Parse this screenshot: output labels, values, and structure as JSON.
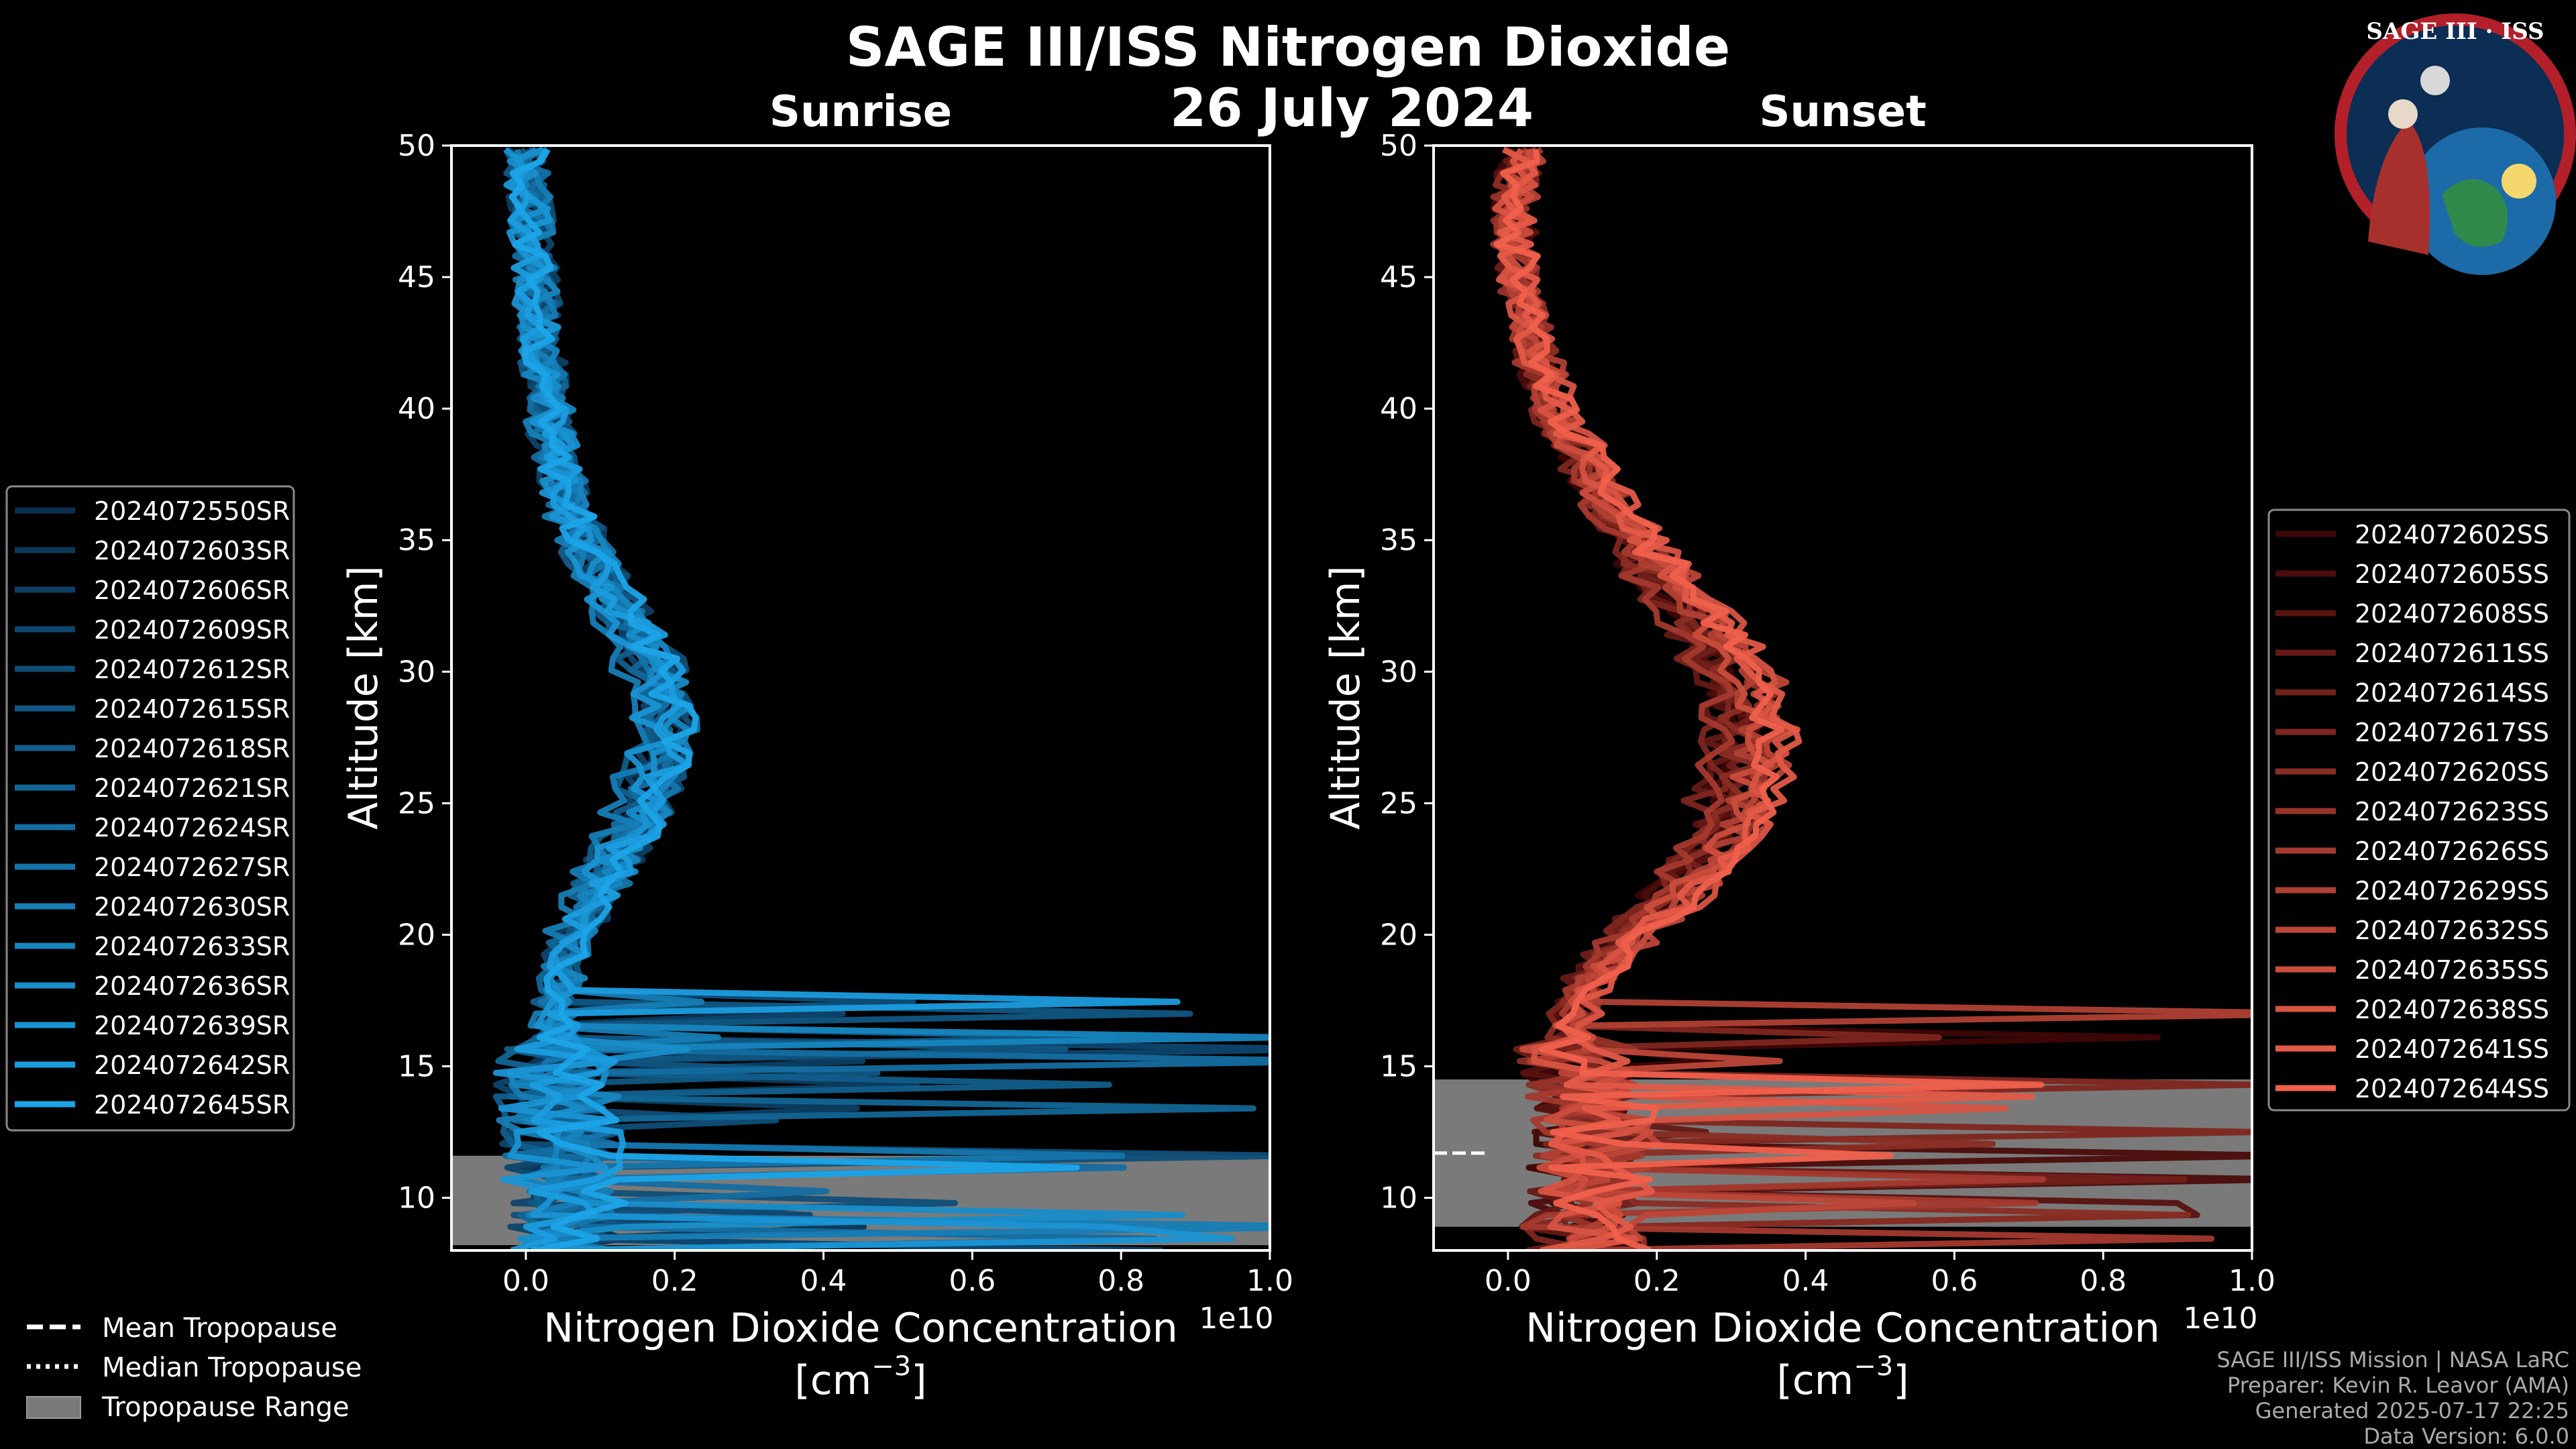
{
  "figure": {
    "title": "SAGE III/ISS Nitrogen Dioxide",
    "date": "26 July 2024",
    "logo_text": "SAGE III · ISS",
    "credits": [
      "SAGE III/ISS Mission | NASA LaRC",
      "Preparer: Kevin R. Leavor (AMA)",
      "Generated 2025-07-17 22:25",
      "Data Version: 6.0.0"
    ],
    "tropopause_legend": [
      "Mean Tropopause",
      "Median Tropopause",
      "Tropopause Range"
    ]
  },
  "chart_data": [
    {
      "type": "line",
      "title": "Sunrise",
      "xlabel": "Nitrogen Dioxide Concentration",
      "xunit": "[cm",
      "xunit_exp": "−3",
      "xunit_close": "]",
      "xscale_label": "1e10",
      "ylabel": "Altitude [km]",
      "xlim": [
        -0.1,
        1.0
      ],
      "ylim": [
        8,
        50
      ],
      "xticks": [
        "0.0",
        "0.2",
        "0.4",
        "0.6",
        "0.8",
        "1.0"
      ],
      "xtick_values": [
        0.0,
        0.2,
        0.4,
        0.6,
        0.8,
        1.0
      ],
      "yticks": [
        10,
        15,
        20,
        25,
        30,
        35,
        40,
        45,
        50
      ],
      "grid": false,
      "legend_position": "left",
      "tropopause_range": [
        8.2,
        11.6
      ],
      "color_start": "#0a2f4f",
      "color_end": "#1ca4e8",
      "series": [
        {
          "name": "2024072550SR"
        },
        {
          "name": "2024072603SR"
        },
        {
          "name": "2024072606SR"
        },
        {
          "name": "2024072609SR"
        },
        {
          "name": "2024072612SR"
        },
        {
          "name": "2024072615SR"
        },
        {
          "name": "2024072618SR"
        },
        {
          "name": "2024072621SR"
        },
        {
          "name": "2024072624SR"
        },
        {
          "name": "2024072627SR"
        },
        {
          "name": "2024072630SR"
        },
        {
          "name": "2024072633SR"
        },
        {
          "name": "2024072636SR"
        },
        {
          "name": "2024072639SR"
        },
        {
          "name": "2024072642SR"
        },
        {
          "name": "2024072645SR"
        }
      ],
      "profile_shape": {
        "altitude": [
          10,
          12,
          14,
          16,
          18,
          20,
          22,
          24,
          26,
          28,
          30,
          32,
          34,
          36,
          38,
          40,
          42,
          44,
          46,
          48,
          50
        ],
        "no2": [
          0.05,
          0.05,
          0.04,
          0.04,
          0.04,
          0.06,
          0.1,
          0.14,
          0.17,
          0.18,
          0.17,
          0.13,
          0.09,
          0.06,
          0.04,
          0.03,
          0.02,
          0.015,
          0.01,
          0.005,
          0.0
        ]
      }
    },
    {
      "type": "line",
      "title": "Sunset",
      "xlabel": "Nitrogen Dioxide Concentration",
      "xunit": "[cm",
      "xunit_exp": "−3",
      "xunit_close": "]",
      "xscale_label": "1e10",
      "ylabel": "Altitude [km]",
      "xlim": [
        -0.1,
        1.0
      ],
      "ylim": [
        8,
        50
      ],
      "xticks": [
        "0.0",
        "0.2",
        "0.4",
        "0.6",
        "0.8",
        "1.0"
      ],
      "xtick_values": [
        0.0,
        0.2,
        0.4,
        0.6,
        0.8,
        1.0
      ],
      "yticks": [
        10,
        15,
        20,
        25,
        30,
        35,
        40,
        45,
        50
      ],
      "grid": false,
      "legend_position": "right",
      "tropopause_range": [
        8.9,
        14.5
      ],
      "mean_tropopause": 11.7,
      "color_start": "#3e0606",
      "color_end": "#f0604c",
      "series": [
        {
          "name": "2024072602SS"
        },
        {
          "name": "2024072605SS"
        },
        {
          "name": "2024072608SS"
        },
        {
          "name": "2024072611SS"
        },
        {
          "name": "2024072614SS"
        },
        {
          "name": "2024072617SS"
        },
        {
          "name": "2024072620SS"
        },
        {
          "name": "2024072623SS"
        },
        {
          "name": "2024072626SS"
        },
        {
          "name": "2024072629SS"
        },
        {
          "name": "2024072632SS"
        },
        {
          "name": "2024072635SS"
        },
        {
          "name": "2024072638SS"
        },
        {
          "name": "2024072641SS"
        },
        {
          "name": "2024072644SS"
        }
      ],
      "profile_shape": {
        "altitude": [
          10,
          12,
          14,
          16,
          18,
          20,
          22,
          24,
          26,
          28,
          30,
          32,
          34,
          36,
          38,
          40,
          42,
          44,
          46,
          48,
          50
        ],
        "no2": [
          0.1,
          0.12,
          0.1,
          0.08,
          0.1,
          0.16,
          0.24,
          0.29,
          0.31,
          0.32,
          0.3,
          0.25,
          0.19,
          0.14,
          0.1,
          0.06,
          0.04,
          0.02,
          0.01,
          0.01,
          0.02
        ]
      }
    }
  ]
}
